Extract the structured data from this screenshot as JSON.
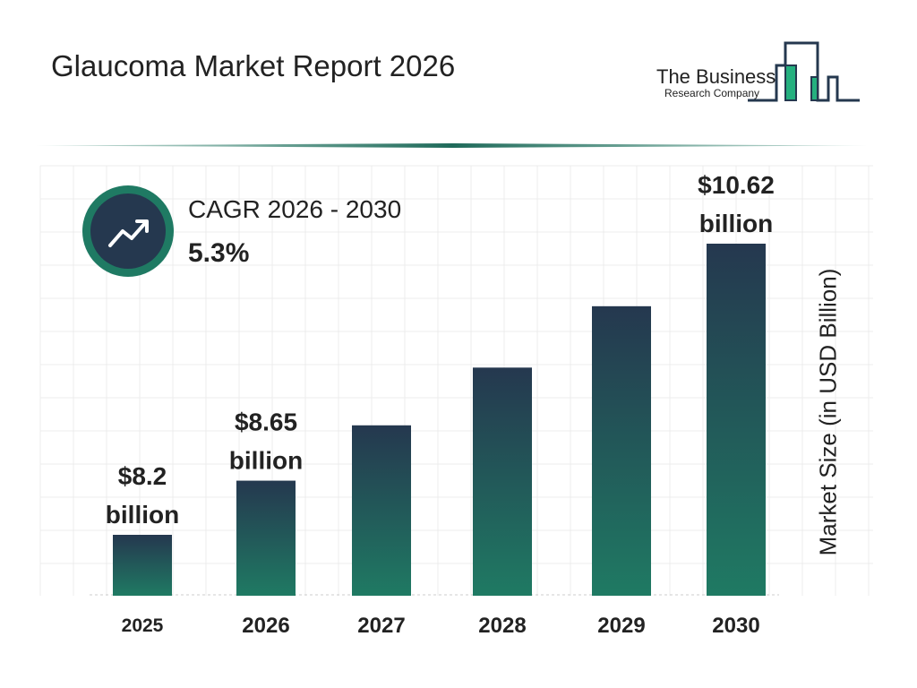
{
  "title": "Glaucoma Market Report 2026",
  "logo": {
    "line1": "The Business",
    "line2": "Research Company"
  },
  "cagr": {
    "label": "CAGR 2026 - 2030",
    "value": "5.3%",
    "icon": "trend-up-arrow-icon"
  },
  "colors": {
    "bar_top": "#25384f",
    "bar_bottom": "#1f7a63",
    "accent": "#1f7a63"
  },
  "chart_data": {
    "type": "bar",
    "title": "Glaucoma Market Report 2026",
    "categories": [
      "2025",
      "2026",
      "2027",
      "2028",
      "2029",
      "2030"
    ],
    "values": [
      8.2,
      8.65,
      9.11,
      9.59,
      10.1,
      10.62
    ],
    "data_labels": [
      {
        "index": 0,
        "line1": "$8.2",
        "line2": "billion"
      },
      {
        "index": 1,
        "line1": "$8.65",
        "line2": "billion"
      },
      {
        "index": 5,
        "line1": "$10.62",
        "line2": "billion"
      }
    ],
    "xlabel": "",
    "ylabel": "Market Size (in USD Billion)",
    "grid": true,
    "legend": "none"
  }
}
